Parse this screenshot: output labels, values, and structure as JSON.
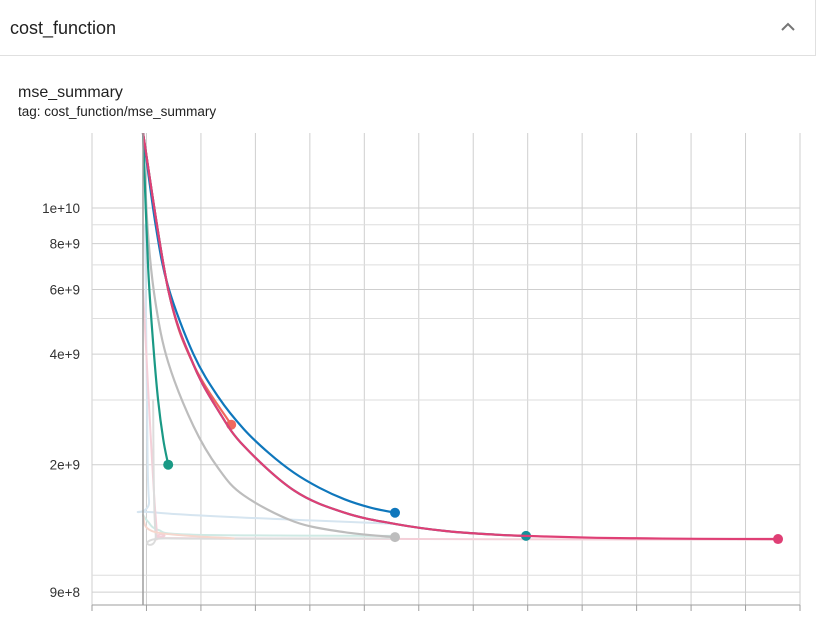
{
  "section": {
    "title": "cost_function",
    "collapse_icon": "chevron-up-icon"
  },
  "panel": {
    "title": "mse_summary",
    "tag": "tag: cost_function/mse_summary"
  },
  "chart_data": {
    "type": "line",
    "title": "mse_summary",
    "y_scale": "log",
    "ylim": [
      830000000,
      16000000000
    ],
    "xlim": [
      0,
      13
    ],
    "y_ticks": [
      {
        "label": "1e+10",
        "value": 10000000000
      },
      {
        "label": "8e+9",
        "value": 8000000000
      },
      {
        "label": "6e+9",
        "value": 6000000000
      },
      {
        "label": "4e+9",
        "value": 4000000000
      },
      {
        "label": "2e+9",
        "value": 2000000000
      },
      {
        "label": "9e+8",
        "value": 900000000
      }
    ],
    "y_minor_grid": [
      1000000000,
      3000000000,
      5000000000,
      7000000000,
      9000000000
    ],
    "x_gridlines": 14,
    "xlabel": "",
    "ylabel": "",
    "grid": true,
    "legend": "none",
    "series": [
      {
        "color": "#d6e5f0",
        "end_marker": false,
        "x": [
          0.04,
          0.08,
          0.12,
          0.3,
          5.0
        ],
        "y": [
          9000000000,
          3000000000,
          1600000000,
          1480000000,
          1380000000
        ]
      },
      {
        "color": "#cfe9e4",
        "end_marker": false,
        "x": [
          0.0,
          0.1,
          0.3,
          1.0,
          5.0
        ],
        "y": [
          1460000000,
          1400000000,
          1330000000,
          1290000000,
          1280000000
        ]
      },
      {
        "color": "#f4cfd8",
        "end_marker": false,
        "x": [
          0.0,
          0.25,
          0.4,
          1.5,
          12.6
        ],
        "y": [
          6000000000,
          1450000000,
          1290000000,
          1260000000,
          1250000000
        ]
      },
      {
        "color": "#dcdcdc",
        "end_marker": false,
        "x": [
          0.2,
          0.25,
          0.5,
          5.0
        ],
        "y": [
          3000000000,
          1300000000,
          1260000000,
          1260000000
        ]
      },
      {
        "color": "#f6d7cd",
        "end_marker": false,
        "x": [
          0.0,
          0.25,
          1.8
        ],
        "y": [
          1450000000,
          1310000000,
          1260000000
        ]
      },
      {
        "color": "#bdbdbd",
        "end_marker": true,
        "x": [
          0.0,
          0.1,
          0.25,
          0.5,
          1.0,
          1.5,
          2.0,
          3.0,
          4.0,
          5.0
        ],
        "y": [
          16000000000,
          8500000000,
          5500000000,
          3800000000,
          2550000000,
          1950000000,
          1650000000,
          1400000000,
          1310000000,
          1270000000
        ]
      },
      {
        "color": "#1a9985",
        "end_marker": true,
        "x": [
          0.0,
          0.1,
          0.2,
          0.3,
          0.4,
          0.5
        ],
        "y": [
          16000000000,
          7000000000,
          4300000000,
          3000000000,
          2350000000,
          2000000000
        ]
      },
      {
        "color": "#0f77bc",
        "end_marker": true,
        "x": [
          0.0,
          0.25,
          0.5,
          1.0,
          1.5,
          2.0,
          2.5,
          3.0,
          3.5,
          4.0,
          4.5,
          5.0
        ],
        "y": [
          16000000000,
          9000000000,
          6100000000,
          4000000000,
          3050000000,
          2500000000,
          2150000000,
          1900000000,
          1730000000,
          1610000000,
          1530000000,
          1480000000
        ]
      },
      {
        "color": "#f0685d",
        "end_marker": true,
        "x": [
          0.0,
          0.5,
          1.0,
          1.75
        ],
        "y": [
          16000000000,
          6000000000,
          3750000000,
          2570000000
        ]
      },
      {
        "color": "#159099",
        "end_marker": true,
        "x": [
          0.0,
          0.5,
          1.0,
          1.5,
          2.0,
          3.0,
          4.0,
          5.0,
          6.0,
          7.0,
          7.6
        ],
        "y": [
          16000000000,
          6000000000,
          3750000000,
          2800000000,
          2250000000,
          1700000000,
          1480000000,
          1380000000,
          1320000000,
          1290000000,
          1280000000
        ]
      },
      {
        "color": "#df3f75",
        "end_marker": true,
        "x": [
          0.0,
          0.5,
          1.0,
          1.5,
          2.0,
          3.0,
          4.0,
          5.0,
          6.0,
          7.0,
          8.0,
          9.0,
          10.0,
          11.0,
          12.6
        ],
        "y": [
          16000000000,
          6000000000,
          3750000000,
          2800000000,
          2250000000,
          1700000000,
          1480000000,
          1380000000,
          1320000000,
          1290000000,
          1275000000,
          1265000000,
          1260000000,
          1257000000,
          1255000000
        ]
      }
    ]
  }
}
